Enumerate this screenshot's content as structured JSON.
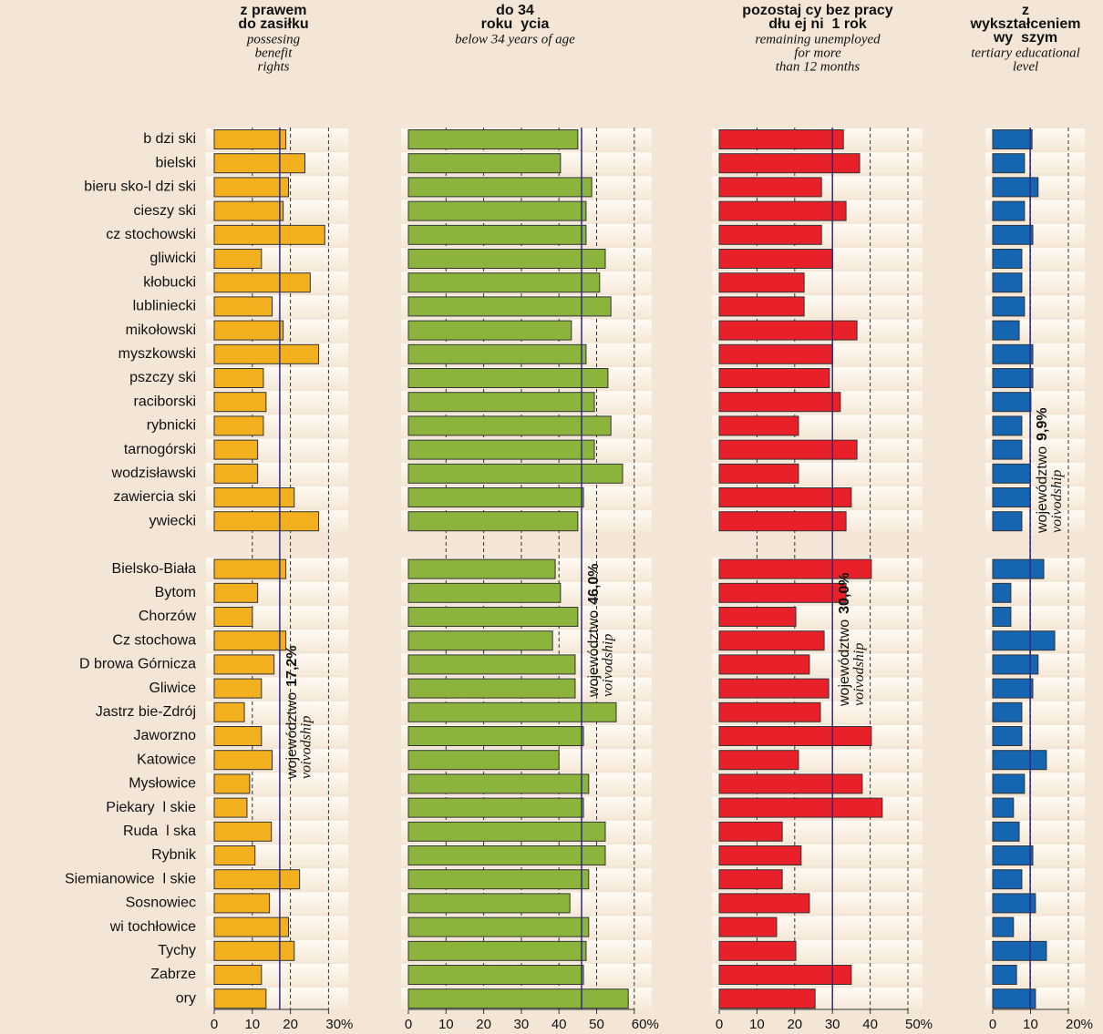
{
  "chart_data": {
    "type": "bar",
    "categories": [
      "b dzi ski",
      "bielski",
      "bieru sko-l dzi ski",
      "cieszy ski",
      "cz stochowski",
      "gliwicki",
      "kłobucki",
      "lubliniecki",
      "mikołowski",
      "myszkowski",
      "pszczy ski",
      "raciborski",
      "rybnicki",
      "tarnogórski",
      "wodzisławski",
      "zawiercia ski",
      "ywiecki",
      null,
      "Bielsko-Biała",
      "Bytom",
      "Chorzów",
      "Cz stochowa",
      "D browa Górnicza",
      "Gliwice",
      "Jastrz bie-Zdrój",
      "Jaworzno",
      "Katowice",
      "Mysłowice",
      "Piekary  l skie",
      "Ruda  l ska",
      "Rybnik",
      "Siemianowice  l skie",
      "Sosnowiec",
      "wi tochłowice",
      "Tychy",
      "Zabrze",
      "ory"
    ],
    "panels": [
      {
        "title": [
          "z prawem",
          "do zasiłku"
        ],
        "subtitle": [
          "possesing",
          "benefit",
          "rights"
        ],
        "color": "#f3b01e",
        "values": [
          18.8,
          23.8,
          19.5,
          18.1,
          29,
          12.4,
          25.2,
          15.2,
          18.1,
          27.4,
          12.9,
          13.6,
          12.9,
          11.4,
          11.4,
          21,
          27.4,
          null,
          18.8,
          11.4,
          10,
          18.8,
          15.7,
          12.4,
          7.9,
          12.4,
          15.2,
          9.3,
          8.6,
          15,
          10.7,
          22.4,
          14.5,
          19.5,
          21,
          12.4,
          13.6
        ],
        "xlim": [
          0,
          30
        ],
        "xticks": [
          0,
          10,
          20,
          {
            "value": 30,
            "label": "30%"
          }
        ],
        "reference": {
          "value": 17.2,
          "label": "17,2%",
          "name": "województwo",
          "name_en": "voivodship"
        }
      },
      {
        "title": [
          "do 34",
          "roku  ycia"
        ],
        "subtitle": [
          "below 34 years of age"
        ],
        "color": "#8cb43c",
        "values": [
          45,
          40.4,
          48.7,
          47.2,
          47.2,
          52.3,
          50.8,
          53.8,
          43.3,
          47.2,
          53,
          49.4,
          53.8,
          49.4,
          56.9,
          46.5,
          45,
          null,
          39,
          40.4,
          45,
          38.3,
          44.3,
          44.3,
          55.2,
          46.5,
          40,
          47.9,
          46.5,
          52.3,
          52.3,
          47.9,
          42.9,
          47.9,
          47.2,
          46.5,
          58.4
        ],
        "xlim": [
          0,
          60
        ],
        "xticks": [
          0,
          10,
          20,
          30,
          40,
          50,
          {
            "value": 60,
            "label": "60%"
          }
        ],
        "reference": {
          "value": 46.0,
          "label": "46,0%",
          "name": "województwo",
          "name_en": "voivodship"
        }
      },
      {
        "title": [
          "pozostaj cy bez pracy",
          "dłu ej ni  1 rok"
        ],
        "subtitle": [
          "remaining unemployed",
          "for more",
          "than 12 months"
        ],
        "color": "#e8202a",
        "values": [
          32.9,
          37.2,
          27.1,
          33.6,
          27.1,
          30,
          22.5,
          22.5,
          36.5,
          30,
          29.2,
          32.1,
          21,
          36.5,
          21,
          35,
          33.6,
          null,
          40.3,
          33.6,
          20.3,
          27.8,
          23.9,
          29,
          26.8,
          40.3,
          21,
          37.9,
          43.2,
          16.7,
          21.7,
          16.7,
          23.9,
          15.2,
          20.3,
          35,
          25.4
        ],
        "xlim": [
          0,
          50
        ],
        "xticks": [
          0,
          10,
          20,
          30,
          40,
          {
            "value": 50,
            "label": "50%"
          }
        ],
        "reference": {
          "value": 30.0,
          "label": "30,0%",
          "name": "województwo",
          "name_en": "voivodship"
        }
      },
      {
        "title": [
          "z",
          "wykształceniem",
          "wy  szym"
        ],
        "subtitle": [
          "tertiary educational",
          "level"
        ],
        "color": "#1565b0",
        "values": [
          10.4,
          8.4,
          12,
          8.4,
          10.6,
          7.7,
          7.7,
          8.4,
          7,
          10.6,
          10.6,
          10.1,
          7.7,
          7.7,
          9.9,
          9.9,
          7.7,
          null,
          13.5,
          4.8,
          4.8,
          16.4,
          12,
          10.6,
          7.7,
          7.7,
          14.2,
          8.4,
          5.5,
          7,
          10.6,
          7.7,
          11.3,
          5.5,
          14.2,
          6.3,
          11.3
        ],
        "xlim": [
          0,
          20
        ],
        "xticks": [
          0,
          10,
          {
            "value": 20,
            "label": "20%"
          }
        ],
        "reference": {
          "value": 9.9,
          "label": "9,9%",
          "name": "województwo",
          "name_en": "voivodship"
        }
      }
    ]
  }
}
